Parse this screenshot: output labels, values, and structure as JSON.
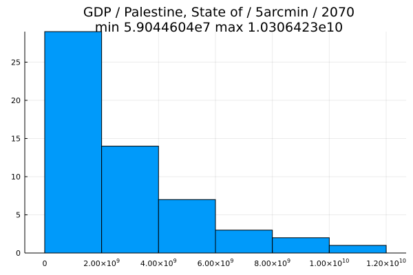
{
  "chart_data": {
    "type": "bar",
    "title": "GDP / Palestine, State of / 5arcmin / 2070",
    "subtitle": "min 5.9044604e7  max 1.0306423e10",
    "xlabel": "",
    "ylabel": "",
    "bins": [
      {
        "start": 0,
        "end": 2000000000,
        "value": 29
      },
      {
        "start": 2000000000,
        "end": 4000000000,
        "value": 14
      },
      {
        "start": 4000000000,
        "end": 6000000000,
        "value": 7
      },
      {
        "start": 6000000000,
        "end": 8000000000,
        "value": 3
      },
      {
        "start": 8000000000,
        "end": 10000000000,
        "value": 2
      },
      {
        "start": 10000000000,
        "end": 12000000000,
        "value": 1
      }
    ],
    "xlim": [
      -700000000,
      12700000000
    ],
    "ylim": [
      0,
      29
    ],
    "x_ticks": [
      {
        "value": 0,
        "label": "0",
        "exp": ""
      },
      {
        "value": 2000000000,
        "label": "2.00×10",
        "exp": "9"
      },
      {
        "value": 4000000000,
        "label": "4.00×10",
        "exp": "9"
      },
      {
        "value": 6000000000,
        "label": "6.00×10",
        "exp": "9"
      },
      {
        "value": 8000000000,
        "label": "8.00×10",
        "exp": "9"
      },
      {
        "value": 10000000000,
        "label": "1.00×10",
        "exp": "10"
      },
      {
        "value": 12000000000,
        "label": "1.20×10",
        "exp": "10"
      }
    ],
    "y_ticks": [
      {
        "value": 0,
        "label": "0"
      },
      {
        "value": 5,
        "label": "5"
      },
      {
        "value": 10,
        "label": "10"
      },
      {
        "value": 15,
        "label": "15"
      },
      {
        "value": 20,
        "label": "20"
      },
      {
        "value": 25,
        "label": "25"
      }
    ],
    "bar_color": "#009AFA",
    "grid": true,
    "legend": "none"
  }
}
